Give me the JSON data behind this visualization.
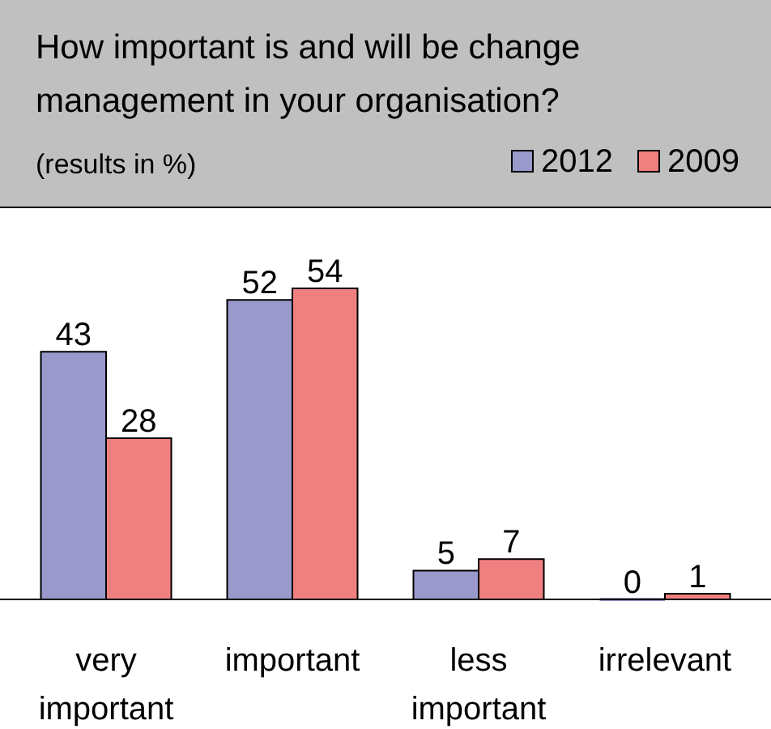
{
  "chart_data": {
    "type": "bar",
    "title": "How important is and will be change management in your organisation?",
    "subtitle": "(results in %)",
    "categories": [
      "very important",
      "important",
      "less important",
      "irrelevant"
    ],
    "series": [
      {
        "name": "2012",
        "color": "#9999cc",
        "values": [
          43,
          52,
          5,
          0
        ]
      },
      {
        "name": "2009",
        "color": "#f08080",
        "values": [
          28,
          54,
          7,
          1
        ]
      }
    ],
    "data_labels": true,
    "legend": "top right",
    "tick_labels": "x"
  }
}
